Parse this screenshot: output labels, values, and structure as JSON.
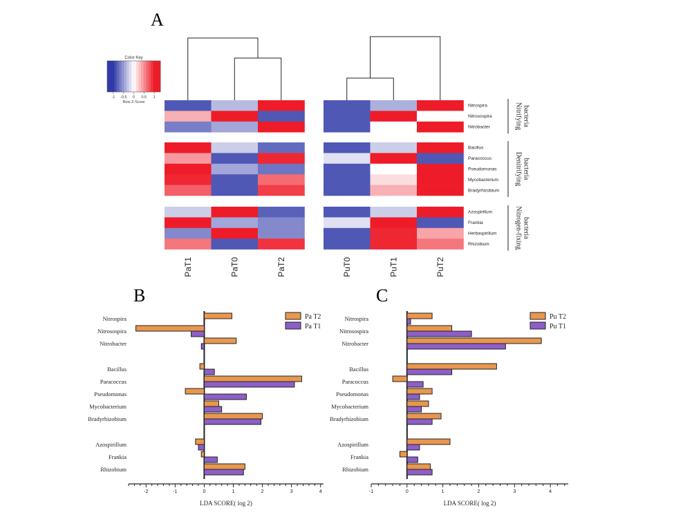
{
  "panel_a": {
    "label": "A",
    "color_key": {
      "title": "Color Key",
      "xlabel": "Row Z-Score",
      "ticks": [
        "-1",
        "-0.5",
        "0",
        "0.5",
        "1"
      ],
      "tick_values": [
        -1,
        -0.5,
        0,
        0.5,
        1
      ],
      "range": [
        -1.3,
        1.3
      ]
    },
    "groups": [
      "Nitrifying bacteria",
      "Denitrifying bacteria",
      "Nitrogen-fixing bacteria"
    ],
    "rows": [
      [
        "Nitrospira",
        "Nitrosospira",
        "Nitrobacter"
      ],
      [
        "Bacillus",
        "Paracoccus",
        "Pseudomonas",
        "Mycobacterium",
        "Bradyrhizobium"
      ],
      [
        "Azospirillum",
        "Frankia",
        "Herbaspirillum",
        "Rhizobium"
      ]
    ],
    "heatmaps": [
      {
        "columns": [
          "PaT1",
          "PaT0",
          "PaT2"
        ],
        "values": [
          [
            [
              -0.85,
              -0.35,
              1.1
            ],
            [
              0.35,
              1.1,
              -0.85
            ],
            [
              -0.65,
              -0.45,
              1.1
            ]
          ],
          [
            [
              1.1,
              -0.25,
              -0.75
            ],
            [
              0.45,
              -0.85,
              0.95
            ],
            [
              1.1,
              -0.45,
              -0.7
            ],
            [
              0.95,
              -0.85,
              0.65
            ],
            [
              0.7,
              -0.85,
              0.85
            ]
          ],
          [
            [
              -0.25,
              1.1,
              -0.8
            ],
            [
              1.1,
              -0.45,
              -0.6
            ],
            [
              -0.6,
              1.1,
              -0.6
            ],
            [
              0.6,
              -0.85,
              0.9
            ]
          ]
        ]
      },
      {
        "columns": [
          "PuT0",
          "PuT1",
          "PuT2"
        ],
        "values": [
          [
            [
              -0.85,
              -0.4,
              1.1
            ],
            [
              -0.85,
              1.1,
              0.0
            ],
            [
              -0.85,
              0.0,
              1.1
            ]
          ],
          [
            [
              -0.85,
              -0.25,
              1.1
            ],
            [
              -0.15,
              1.1,
              -0.85
            ],
            [
              -0.85,
              0.0,
              1.1
            ],
            [
              -0.85,
              0.15,
              1.1
            ],
            [
              -0.85,
              0.35,
              1.1
            ]
          ],
          [
            [
              -0.85,
              -0.25,
              1.1
            ],
            [
              -0.15,
              1.1,
              -0.85
            ],
            [
              -0.85,
              0.95,
              0.4
            ],
            [
              -0.85,
              0.95,
              0.6
            ]
          ]
        ]
      }
    ]
  },
  "chart_data": [
    {
      "type": "bar",
      "orientation": "horizontal",
      "panel": "B",
      "categories": [
        "Nitrospira",
        "Nitrosospira",
        "Nitrobacter",
        "Bacillus",
        "Paracoccus",
        "Pseudomonas",
        "Mycobacterium",
        "Bradyrhizobium",
        "Azospirillum",
        "Frankia",
        "Rhizobium"
      ],
      "group_breaks_after": [
        2,
        7
      ],
      "series": [
        {
          "name": "Pa T2",
          "color": "#e8974f",
          "values": [
            0.95,
            -2.35,
            1.1,
            -0.15,
            3.35,
            -0.65,
            0.5,
            2.0,
            -0.3,
            -0.1,
            1.4
          ]
        },
        {
          "name": "Pa T1",
          "color": "#8d5fc7",
          "values": [
            0.0,
            -0.45,
            -0.1,
            0.35,
            3.1,
            1.45,
            0.6,
            1.95,
            -0.2,
            0.45,
            1.35
          ]
        }
      ],
      "xlabel": "LDA SCORE( log 2)",
      "xlim": [
        -2.6,
        4.1
      ],
      "xticks": [
        -2,
        -1,
        0,
        1,
        2,
        3,
        4
      ],
      "legend": "top-right"
    },
    {
      "type": "bar",
      "orientation": "horizontal",
      "panel": "C",
      "categories": [
        "Nitrospira",
        "Nitrosospira",
        "Nitrobacter",
        "Bacillus",
        "Paracoccus",
        "Pseudomonas",
        "Mycobacterium",
        "Bradyrhizobium",
        "Azospirillum",
        "Frankia",
        "Rhizobium"
      ],
      "group_breaks_after": [
        2,
        7
      ],
      "series": [
        {
          "name": "Pu T2",
          "color": "#e8974f",
          "values": [
            0.7,
            1.25,
            3.75,
            2.5,
            -0.4,
            0.7,
            0.6,
            0.95,
            1.2,
            -0.2,
            0.65
          ]
        },
        {
          "name": "Pu T1",
          "color": "#8d5fc7",
          "values": [
            0.1,
            1.8,
            2.75,
            1.25,
            0.45,
            0.35,
            0.4,
            0.7,
            0.35,
            0.3,
            0.7
          ]
        }
      ],
      "xlabel": "LDA SCORE( log 2)",
      "xlim": [
        -1.0,
        4.5
      ],
      "xticks": [
        -1,
        0,
        1,
        2,
        3,
        4
      ],
      "legend": "top-right"
    }
  ]
}
